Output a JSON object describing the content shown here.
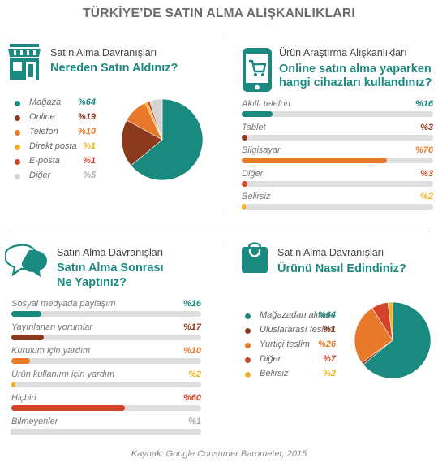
{
  "title": "TÜRKİYE’DE SATIN ALMA ALIŞKANLIKLARI",
  "source": "Kaynak: Google Consumer Barometer, 2015",
  "colors": {
    "teal": "#1a8a80",
    "brown": "#8b3a1e",
    "orange": "#e8792a",
    "yellow": "#f0b323",
    "red": "#d4442a",
    "gray": "#d4d4d4"
  },
  "panels": {
    "tl": {
      "subtitle": "Satın Alma Davranışları",
      "heading": [
        "Nereden Satın Aldınız?"
      ],
      "icon": "store-icon"
    },
    "tr": {
      "subtitle": "Ürün Araştırma Alışkanlıkları",
      "heading": [
        "Online satın alma yaparken",
        "hangi cihazları kullandınız?"
      ],
      "icon": "smartphone-cart-icon"
    },
    "bl": {
      "subtitle": "Satın Alma Davranışları",
      "heading": [
        "Satın Alma Sonrası",
        "Ne Yaptınız?"
      ],
      "icon": "speech-bubbles-icon"
    },
    "br": {
      "subtitle": "Satın Alma Davranışları",
      "heading": [
        "Ürünü Nasıl Edindiniz?"
      ],
      "icon": "shopping-bag-icon"
    }
  },
  "chart_data": [
    {
      "type": "pie",
      "title": "Nereden Satın Aldınız?",
      "slices": [
        {
          "label": "Mağaza",
          "value": 64,
          "display": "%64",
          "color": "#1a8a80"
        },
        {
          "label": "Online",
          "value": 19,
          "display": "%19",
          "color": "#8b3a1e"
        },
        {
          "label": "Telefon",
          "value": 10,
          "display": "%10",
          "color": "#e8792a"
        },
        {
          "label": "Direkt posta",
          "value": 1,
          "display": "%1",
          "color": "#f0b323"
        },
        {
          "label": "E-posta",
          "value": 1,
          "display": "%1",
          "color": "#d4442a"
        },
        {
          "label": "Diğer",
          "value": 5,
          "display": "%5",
          "color": "#d4d4d4"
        }
      ]
    },
    {
      "type": "bar",
      "title": "Online satın alma yaparken hangi cihazları kullandınız?",
      "xlim": [
        0,
        100
      ],
      "bars": [
        {
          "label": "Akıllı telefon",
          "value": 16,
          "display": "%16",
          "color": "#1a8a80"
        },
        {
          "label": "Tablet",
          "value": 3,
          "display": "%3",
          "color": "#8b3a1e"
        },
        {
          "label": "Bilgisayar",
          "value": 76,
          "display": "%76",
          "color": "#e8792a"
        },
        {
          "label": "Diğer",
          "value": 3,
          "display": "%3",
          "color": "#d4442a"
        },
        {
          "label": "Belirsiz",
          "value": 2,
          "display": "%2",
          "color": "#f0b323"
        }
      ]
    },
    {
      "type": "bar",
      "title": "Satın Alma Sonrası Ne Yaptınız?",
      "xlim": [
        0,
        100
      ],
      "bars": [
        {
          "label": "Sosyal medyada paylaşım",
          "value": 16,
          "display": "%16",
          "color": "#1a8a80"
        },
        {
          "label": "Yayınlanan yorumlar",
          "value": 17,
          "display": "%17",
          "color": "#8b3a1e"
        },
        {
          "label": "Kurulum için yardım",
          "value": 10,
          "display": "%10",
          "color": "#e8792a"
        },
        {
          "label": "Ürün kullanımı için yardım",
          "value": 2,
          "display": "%2",
          "color": "#f0b323"
        },
        {
          "label": "Hiçbiri",
          "value": 60,
          "display": "%60",
          "color": "#d4442a"
        },
        {
          "label": "Bilmeyenler",
          "value": 1,
          "display": "%1",
          "color": "#d4d4d4"
        }
      ]
    },
    {
      "type": "pie",
      "title": "Ürünü Nasıl Edindiniz?",
      "slices": [
        {
          "label": "Mağazadan alınan",
          "value": 64,
          "display": "%64",
          "color": "#1a8a80"
        },
        {
          "label": "Uluslararası teslim",
          "value": 1,
          "display": "%1",
          "color": "#8b3a1e"
        },
        {
          "label": "Yurtiçi teslim",
          "value": 26,
          "display": "%26",
          "color": "#e8792a"
        },
        {
          "label": "Diğer",
          "value": 7,
          "display": "%7",
          "color": "#d4442a"
        },
        {
          "label": "Belirsiz",
          "value": 2,
          "display": "%2",
          "color": "#f0b323"
        }
      ]
    }
  ]
}
